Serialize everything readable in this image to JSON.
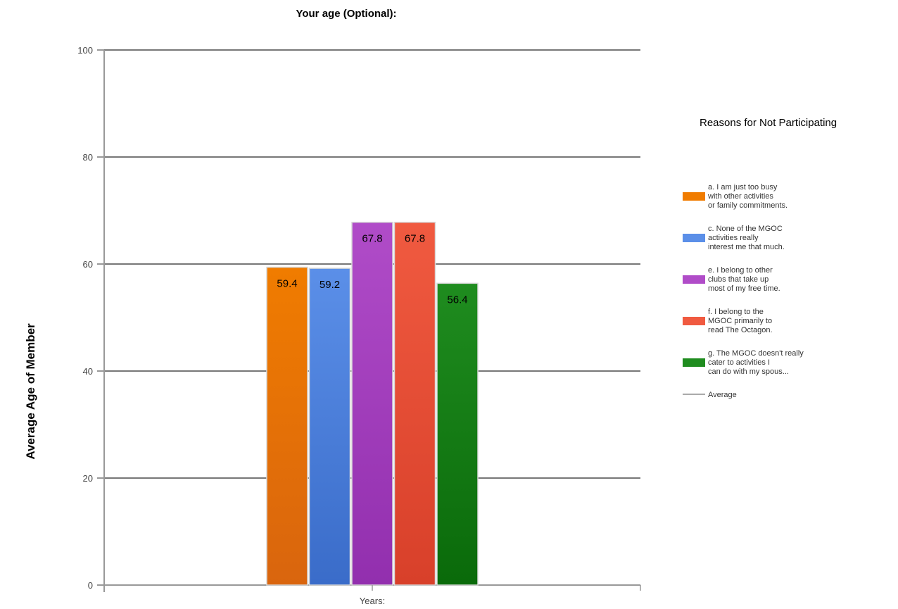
{
  "chart_data": {
    "type": "bar",
    "title": "Your age (Optional):",
    "xlabel": "",
    "ylabel": "Average Age of Member",
    "categories": [
      "Years:"
    ],
    "ylim": [
      0,
      100
    ],
    "yticks": [
      0,
      20,
      40,
      60,
      80,
      100
    ],
    "grid": true,
    "legend_title": "Reasons for Not Participating",
    "legend_position": "right",
    "series": [
      {
        "name": "a. I am just too busy with other activities or family commitments.",
        "legend_lines": [
          "a. I am just too busy",
          "with other activities",
          "or family commitments."
        ],
        "values": [
          59.4
        ],
        "label": "59.4",
        "color": "#f07c00",
        "color_dark": "#d9650e"
      },
      {
        "name": "c. None of the MGOC activities really interest me that much.",
        "legend_lines": [
          "c. None of the MGOC",
          "activities really",
          "interest me that much."
        ],
        "values": [
          59.2
        ],
        "label": "59.2",
        "color": "#5b8fe8",
        "color_dark": "#3a6cc9"
      },
      {
        "name": "e. I belong to other clubs that take up most of my free time.",
        "legend_lines": [
          "e. I belong to other",
          "clubs that take up",
          "most of my free time."
        ],
        "values": [
          67.8
        ],
        "label": "67.8",
        "color": "#b04cc8",
        "color_dark": "#922fae"
      },
      {
        "name": "f. I belong to the MGOC primarily to read The Octagon.",
        "legend_lines": [
          "f. I belong to the",
          "MGOC primarily to",
          "read The Octagon."
        ],
        "values": [
          67.8
        ],
        "label": "67.8",
        "color": "#f05a40",
        "color_dark": "#d8402a"
      },
      {
        "name": "g. The MGOC doesn't really cater to activities I can do with my spous...",
        "legend_lines": [
          "g. The MGOC doesn't really",
          "cater to activities I",
          "can do with my spous..."
        ],
        "values": [
          56.4
        ],
        "label": "56.4",
        "color": "#1f8c1f",
        "color_dark": "#0a6a0a"
      }
    ],
    "extra_legend": {
      "name": "Average",
      "color": "#aaaaaa"
    }
  }
}
